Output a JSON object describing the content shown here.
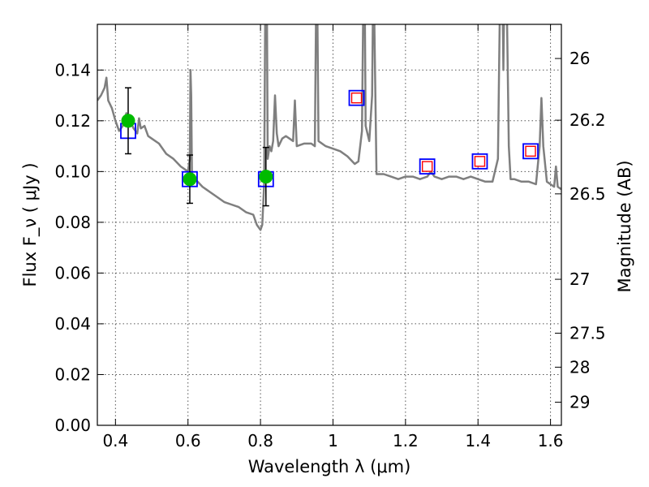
{
  "chart_data": {
    "type": "line",
    "xlabel": "Wavelength  λ (μm)",
    "ylabel": "Flux  F_ν  ( μJy )",
    "ylabel_right": "Magnitude (AB)",
    "xlim": [
      0.35,
      1.63
    ],
    "ylim": [
      0.0,
      0.158
    ],
    "grid": true,
    "x_ticks": [
      0.4,
      0.6,
      0.8,
      1.0,
      1.2,
      1.4,
      1.6
    ],
    "x_tick_labels": [
      "0.4",
      "0.6",
      "0.8",
      "1",
      "1.2",
      "1.4",
      "1.6"
    ],
    "y_ticks": [
      0.0,
      0.02,
      0.04,
      0.06,
      0.08,
      0.1,
      0.12,
      0.14
    ],
    "y_tick_labels": [
      "0.00",
      "0.02",
      "0.04",
      "0.06",
      "0.08",
      "0.10",
      "0.12",
      "0.14"
    ],
    "right_ticks": [
      {
        "label": "26",
        "mag": 26.0
      },
      {
        "label": "26.2",
        "mag": 26.2
      },
      {
        "label": "26.5",
        "mag": 26.5
      },
      {
        "label": "27",
        "mag": 27.0
      },
      {
        "label": "27.5",
        "mag": 27.5
      },
      {
        "label": "28",
        "mag": 28.0
      },
      {
        "label": "29",
        "mag": 29.0
      }
    ],
    "series": [
      {
        "kind": "model-spectrum",
        "color": "#7f7f7f",
        "x": [
          0.35,
          0.36,
          0.37,
          0.375,
          0.38,
          0.39,
          0.4,
          0.41,
          0.42,
          0.43,
          0.44,
          0.45,
          0.46,
          0.465,
          0.47,
          0.48,
          0.49,
          0.5,
          0.52,
          0.54,
          0.56,
          0.58,
          0.6,
          0.605,
          0.607,
          0.609,
          0.611,
          0.613,
          0.62,
          0.64,
          0.66,
          0.68,
          0.7,
          0.72,
          0.74,
          0.76,
          0.78,
          0.79,
          0.8,
          0.805,
          0.81,
          0.813,
          0.816,
          0.818,
          0.82,
          0.825,
          0.83,
          0.835,
          0.84,
          0.845,
          0.85,
          0.86,
          0.87,
          0.88,
          0.89,
          0.895,
          0.9,
          0.92,
          0.94,
          0.95,
          0.953,
          0.955,
          0.957,
          0.96,
          0.98,
          1.0,
          1.02,
          1.04,
          1.06,
          1.07,
          1.08,
          1.083,
          1.085,
          1.088,
          1.09,
          1.1,
          1.108,
          1.11,
          1.112,
          1.114,
          1.12,
          1.14,
          1.16,
          1.18,
          1.2,
          1.22,
          1.24,
          1.26,
          1.27,
          1.28,
          1.3,
          1.32,
          1.34,
          1.36,
          1.38,
          1.4,
          1.42,
          1.44,
          1.455,
          1.46,
          1.465,
          1.47,
          1.475,
          1.48,
          1.485,
          1.49,
          1.5,
          1.52,
          1.54,
          1.56,
          1.57,
          1.575,
          1.58,
          1.59,
          1.6,
          1.61,
          1.615,
          1.62,
          1.63
        ],
        "y": [
          0.128,
          0.13,
          0.133,
          0.137,
          0.128,
          0.125,
          0.12,
          0.116,
          0.118,
          0.123,
          0.12,
          0.117,
          0.115,
          0.121,
          0.117,
          0.118,
          0.114,
          0.113,
          0.111,
          0.107,
          0.105,
          0.102,
          0.1,
          0.105,
          0.14,
          0.13,
          0.099,
          0.097,
          0.097,
          0.094,
          0.092,
          0.09,
          0.088,
          0.087,
          0.086,
          0.084,
          0.083,
          0.079,
          0.077,
          0.079,
          0.095,
          0.16,
          0.2,
          0.16,
          0.105,
          0.11,
          0.108,
          0.112,
          0.13,
          0.115,
          0.11,
          0.113,
          0.114,
          0.113,
          0.112,
          0.128,
          0.11,
          0.111,
          0.111,
          0.11,
          0.16,
          0.2,
          0.16,
          0.112,
          0.11,
          0.109,
          0.108,
          0.106,
          0.103,
          0.104,
          0.116,
          0.16,
          0.2,
          0.16,
          0.118,
          0.112,
          0.13,
          0.16,
          0.2,
          0.16,
          0.099,
          0.099,
          0.098,
          0.097,
          0.098,
          0.098,
          0.097,
          0.098,
          0.1,
          0.098,
          0.097,
          0.098,
          0.098,
          0.097,
          0.098,
          0.097,
          0.096,
          0.096,
          0.105,
          0.16,
          0.2,
          0.14,
          0.2,
          0.16,
          0.11,
          0.097,
          0.097,
          0.096,
          0.096,
          0.095,
          0.11,
          0.129,
          0.11,
          0.096,
          0.095,
          0.094,
          0.102,
          0.094,
          0.093
        ]
      },
      {
        "kind": "model-photometry",
        "color": "#0000ff",
        "marker": "square-open",
        "x": [
          0.435,
          0.605,
          0.815,
          1.065,
          1.26,
          1.405,
          1.545
        ],
        "y": [
          0.116,
          0.097,
          0.097,
          0.129,
          0.102,
          0.104,
          0.108
        ]
      },
      {
        "kind": "upper-limits",
        "color": "#ff0000",
        "marker": "square-open-small",
        "x": [
          1.065,
          1.26,
          1.405,
          1.545
        ],
        "y": [
          0.129,
          0.102,
          0.104,
          0.108
        ]
      },
      {
        "kind": "observed-photometry",
        "color": "#00bb00",
        "marker": "circle-filled",
        "x": [
          0.435,
          0.605,
          0.815
        ],
        "y": [
          0.12,
          0.097,
          0.098
        ],
        "yerr": [
          0.013,
          0.0095,
          0.0115
        ]
      }
    ]
  }
}
